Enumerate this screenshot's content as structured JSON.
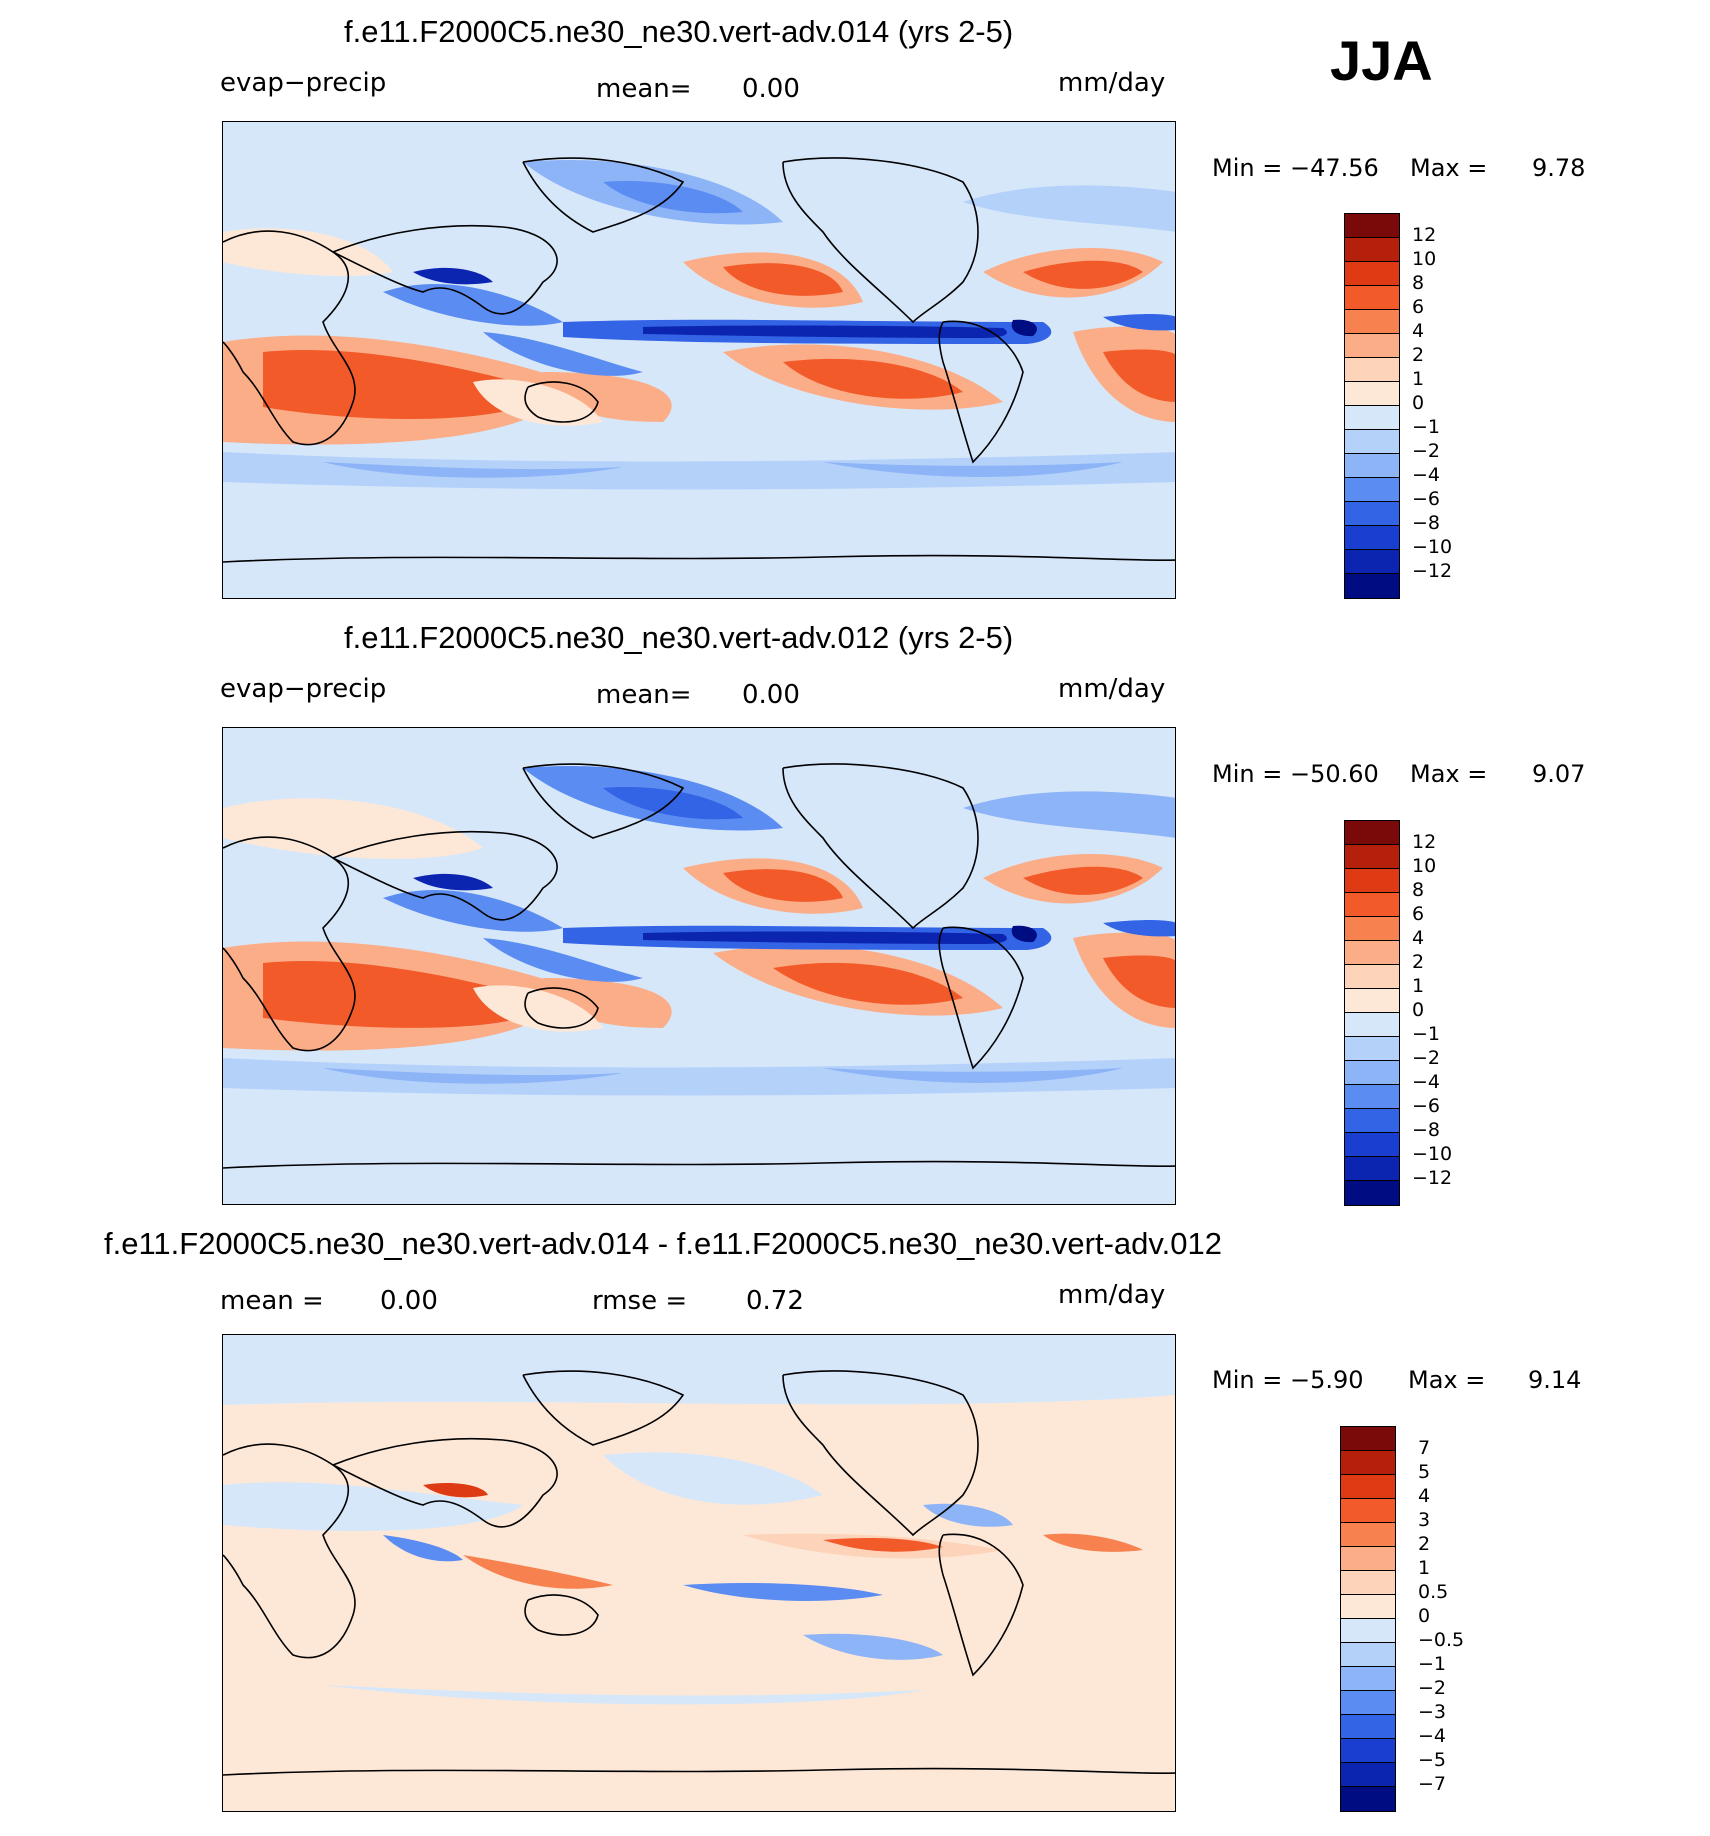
{
  "season": "JJA",
  "panels": [
    {
      "title": "f.e11.F2000C5.ne30_ne30.vert-adv.014 (yrs 2-5)",
      "left_label": "evap−precip",
      "mid_label": "mean=",
      "mid_value": "0.00",
      "units": "mm/day",
      "min_label": "Min  =  −47.56",
      "max_label": "Max  =",
      "max_value": "9.78",
      "colorbar_ticks": [
        "12",
        "10",
        "8",
        "6",
        "4",
        "2",
        "1",
        "0",
        "−1",
        "−2",
        "−4",
        "−6",
        "−8",
        "−10",
        "−12"
      ]
    },
    {
      "title": "f.e11.F2000C5.ne30_ne30.vert-adv.012 (yrs 2-5)",
      "left_label": "evap−precip",
      "mid_label": "mean=",
      "mid_value": "0.00",
      "units": "mm/day",
      "min_label": "Min  =  −50.60",
      "max_label": "Max  =",
      "max_value": "9.07",
      "colorbar_ticks": [
        "12",
        "10",
        "8",
        "6",
        "4",
        "2",
        "1",
        "0",
        "−1",
        "−2",
        "−4",
        "−6",
        "−8",
        "−10",
        "−12"
      ]
    },
    {
      "title": "f.e11.F2000C5.ne30_ne30.vert-adv.014 - f.e11.F2000C5.ne30_ne30.vert-adv.012",
      "left_label": "mean  =",
      "left_value": "0.00",
      "mid_label": "rmse  =",
      "mid_value": "0.72",
      "units": "mm/day",
      "min_label": "Min  =    −5.90",
      "max_label": "Max  =",
      "max_value": "9.14",
      "colorbar_ticks": [
        "7",
        "5",
        "4",
        "3",
        "2",
        "1",
        "0.5",
        "0",
        "−0.5",
        "−1",
        "−2",
        "−3",
        "−4",
        "−5",
        "−7"
      ]
    }
  ],
  "colors": {
    "palette": [
      "#7a0a0a",
      "#b5200c",
      "#de3a14",
      "#f25a2a",
      "#f7814f",
      "#fbad88",
      "#fdd3b9",
      "#fde8d8",
      "#d6e7fa",
      "#b4d1fa",
      "#8db4f7",
      "#5b8cf2",
      "#3464e6",
      "#1a3ed0",
      "#0c25b0",
      "#000c82"
    ]
  }
}
